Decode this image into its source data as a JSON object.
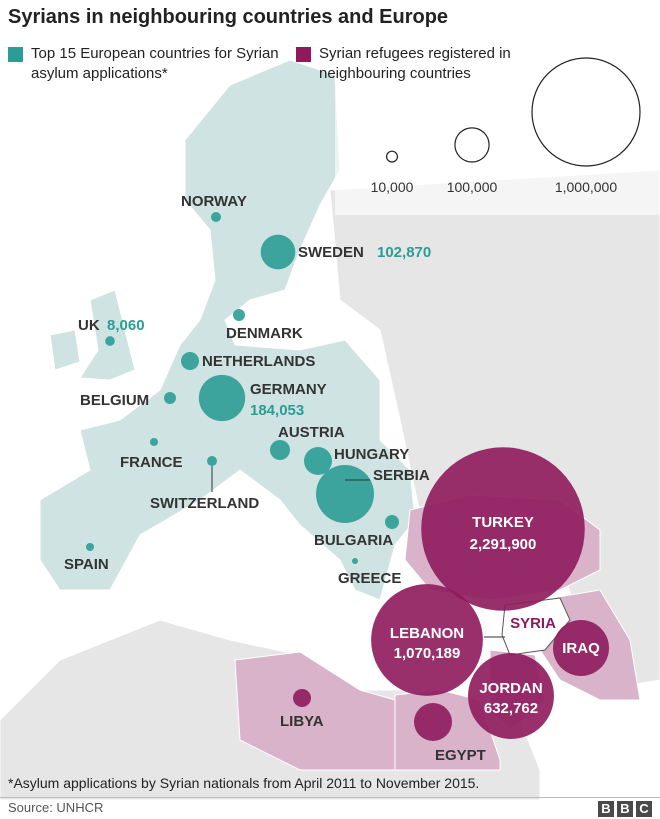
{
  "title": "Syrians in neighbouring countries and Europe",
  "colors": {
    "europe": "#2b9c96",
    "neighbour": "#8e1a5c",
    "europe_land": "#cfe3e2",
    "neighbour_land": "#d9b3c9",
    "other_land": "#e6e6e6",
    "sea": "#ffffff"
  },
  "legend": {
    "europe_label": "Top 15 European countries for Syrian asylum applications*",
    "neighbour_label": "Syrian refugees registered in neighbouring countries",
    "scale": [
      {
        "value": 10000,
        "label": "10,000"
      },
      {
        "value": 100000,
        "label": "100,000"
      },
      {
        "value": 1000000,
        "label": "1,000,000"
      }
    ]
  },
  "europe": [
    {
      "name": "NORWAY"
    },
    {
      "name": "SWEDEN",
      "value": 102870,
      "value_label": "102,870"
    },
    {
      "name": "UK",
      "value": 8060,
      "value_label": "8,060"
    },
    {
      "name": "DENMARK"
    },
    {
      "name": "NETHERLANDS"
    },
    {
      "name": "BELGIUM"
    },
    {
      "name": "GERMANY",
      "value": 184053,
      "value_label": "184,053"
    },
    {
      "name": "FRANCE"
    },
    {
      "name": "AUSTRIA"
    },
    {
      "name": "HUNGARY"
    },
    {
      "name": "SWITZERLAND"
    },
    {
      "name": "SERBIA"
    },
    {
      "name": "SPAIN"
    },
    {
      "name": "BULGARIA"
    },
    {
      "name": "GREECE"
    }
  ],
  "neighbours": [
    {
      "name": "TURKEY",
      "value": 2291900,
      "value_label": "2,291,900"
    },
    {
      "name": "LEBANON",
      "value": 1070189,
      "value_label": "1,070,189"
    },
    {
      "name": "JORDAN",
      "value": 632762,
      "value_label": "632,762"
    },
    {
      "name": "IRAQ"
    },
    {
      "name": "EGYPT"
    },
    {
      "name": "LIBYA"
    }
  ],
  "syria_label": "SYRIA",
  "footnote": "*Asylum applications by Syrian nationals from April 2011 to November 2015.",
  "source": "Source: UNHCR",
  "brand": [
    "B",
    "B",
    "C"
  ]
}
